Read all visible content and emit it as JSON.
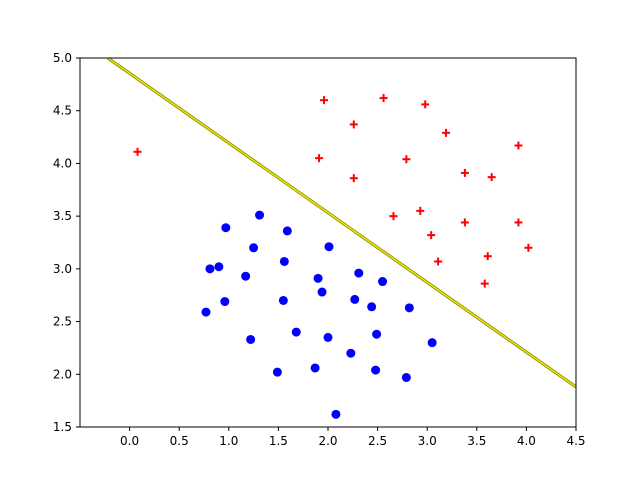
{
  "chart_data": {
    "type": "scatter",
    "title": "",
    "xlabel": "",
    "ylabel": "",
    "xlim": [
      -0.5,
      4.5
    ],
    "ylim": [
      1.5,
      5.0
    ],
    "xticks": [
      "0.0",
      "0.5",
      "1.0",
      "1.5",
      "2.0",
      "2.5",
      "3.0",
      "3.5",
      "4.0",
      "4.5"
    ],
    "yticks": [
      "1.5",
      "2.0",
      "2.5",
      "3.0",
      "3.5",
      "4.0",
      "4.5",
      "5.0"
    ],
    "grid": false,
    "legend": "none",
    "series": [
      {
        "marker": "plus",
        "color": "#ff0000",
        "points": [
          [
            0.08,
            4.11
          ],
          [
            1.96,
            4.6
          ],
          [
            2.56,
            4.62
          ],
          [
            2.98,
            4.56
          ],
          [
            2.26,
            4.37
          ],
          [
            3.19,
            4.29
          ],
          [
            1.91,
            4.05
          ],
          [
            2.79,
            4.04
          ],
          [
            3.92,
            4.17
          ],
          [
            2.26,
            3.86
          ],
          [
            3.38,
            3.91
          ],
          [
            3.65,
            3.87
          ],
          [
            2.66,
            3.5
          ],
          [
            2.93,
            3.55
          ],
          [
            3.38,
            3.44
          ],
          [
            3.92,
            3.44
          ],
          [
            3.04,
            3.32
          ],
          [
            4.02,
            3.2
          ],
          [
            3.61,
            3.12
          ],
          [
            3.11,
            3.07
          ],
          [
            3.58,
            2.86
          ]
        ]
      },
      {
        "marker": "circle",
        "color": "#0000ff",
        "points": [
          [
            1.31,
            3.51
          ],
          [
            0.97,
            3.39
          ],
          [
            1.59,
            3.36
          ],
          [
            1.25,
            3.2
          ],
          [
            2.01,
            3.21
          ],
          [
            1.56,
            3.07
          ],
          [
            0.81,
            3.0
          ],
          [
            0.9,
            3.02
          ],
          [
            1.17,
            2.93
          ],
          [
            2.31,
            2.96
          ],
          [
            1.9,
            2.91
          ],
          [
            2.55,
            2.88
          ],
          [
            1.94,
            2.78
          ],
          [
            0.96,
            2.69
          ],
          [
            1.55,
            2.7
          ],
          [
            2.27,
            2.71
          ],
          [
            2.44,
            2.64
          ],
          [
            2.82,
            2.63
          ],
          [
            0.77,
            2.59
          ],
          [
            1.68,
            2.4
          ],
          [
            2.0,
            2.35
          ],
          [
            2.49,
            2.38
          ],
          [
            1.22,
            2.33
          ],
          [
            3.05,
            2.3
          ],
          [
            2.23,
            2.2
          ],
          [
            1.87,
            2.06
          ],
          [
            1.49,
            2.02
          ],
          [
            2.48,
            2.04
          ],
          [
            2.79,
            1.97
          ],
          [
            2.08,
            1.62
          ]
        ]
      }
    ],
    "boundary": {
      "color": "#c8c800",
      "points": [
        [
          -0.22,
          5.0
        ],
        [
          4.5,
          1.88
        ]
      ]
    }
  }
}
